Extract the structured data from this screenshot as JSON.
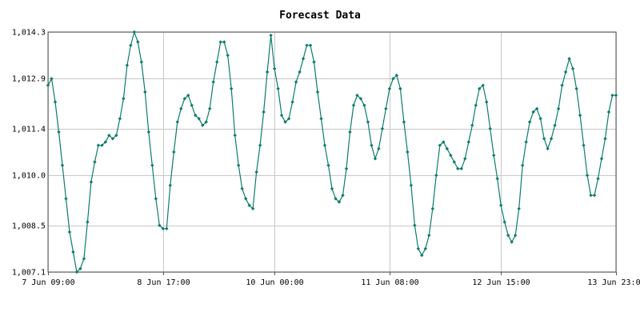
{
  "chart_data": {
    "type": "line",
    "title": "Forecast Data",
    "xlabel": "",
    "ylabel": "",
    "x_ticks": [
      {
        "t": 0,
        "label": "7 Jun 09:00"
      },
      {
        "t": 32,
        "label": "8 Jun 17:00"
      },
      {
        "t": 63,
        "label": "10 Jun 00:00"
      },
      {
        "t": 95,
        "label": "11 Jun 08:00"
      },
      {
        "t": 126,
        "label": "12 Jun 15:00"
      },
      {
        "t": 158,
        "label": "13 Jun 23:00"
      }
    ],
    "y_ticks": [
      {
        "v": 1007.1,
        "label": "1,007.1"
      },
      {
        "v": 1008.5,
        "label": "1,008.5"
      },
      {
        "v": 1010.0,
        "label": "1,010.0"
      },
      {
        "v": 1011.4,
        "label": "1,011.4"
      },
      {
        "v": 1012.9,
        "label": "1,012.9"
      },
      {
        "v": 1014.3,
        "label": "1,014.3"
      }
    ],
    "xlim": [
      0,
      158
    ],
    "ylim": [
      1007.1,
      1014.3
    ],
    "grid": true,
    "color": "#0e7c6b",
    "series": [
      {
        "x": [
          0,
          1,
          2,
          3,
          4,
          5,
          6,
          7,
          8,
          9,
          10,
          11,
          12,
          13,
          14,
          15,
          16,
          17,
          18,
          19,
          20,
          21,
          22,
          23,
          24,
          25,
          26,
          27,
          28,
          29,
          30,
          31,
          32,
          33,
          34,
          35,
          36,
          37,
          38,
          39,
          40,
          41,
          42,
          43,
          44,
          45,
          46,
          47,
          48,
          49,
          50,
          51,
          52,
          53,
          54,
          55,
          56,
          57,
          58,
          59,
          60,
          61,
          62,
          63,
          64,
          65,
          66,
          67,
          68,
          69,
          70,
          71,
          72,
          73,
          74,
          75,
          76,
          77,
          78,
          79,
          80,
          81,
          82,
          83,
          84,
          85,
          86,
          87,
          88,
          89,
          90,
          91,
          92,
          93,
          94,
          95,
          96,
          97,
          98,
          99,
          100,
          101,
          102,
          103,
          104,
          105,
          106,
          107,
          108,
          109,
          110,
          111,
          112,
          113,
          114,
          115,
          116,
          117,
          118,
          119,
          120,
          121,
          122,
          123,
          124,
          125,
          126,
          127,
          128,
          129,
          130,
          131,
          132,
          133,
          134,
          135,
          136,
          137,
          138,
          139,
          140,
          141,
          142,
          143,
          144,
          145,
          146,
          147,
          148,
          149,
          150,
          151,
          152,
          153,
          154,
          155,
          156,
          157,
          158
        ],
        "values": [
          1012.7,
          1012.9,
          1012.2,
          1011.3,
          1010.3,
          1009.3,
          1008.3,
          1007.7,
          1007.1,
          1007.2,
          1007.5,
          1008.6,
          1009.8,
          1010.4,
          1010.9,
          1010.9,
          1011.0,
          1011.2,
          1011.1,
          1011.2,
          1011.7,
          1012.3,
          1013.3,
          1013.9,
          1014.3,
          1014.0,
          1013.4,
          1012.5,
          1011.3,
          1010.3,
          1009.3,
          1008.5,
          1008.4,
          1008.4,
          1009.7,
          1010.7,
          1011.6,
          1012.0,
          1012.3,
          1012.4,
          1012.1,
          1011.8,
          1011.7,
          1011.5,
          1011.6,
          1012.0,
          1012.8,
          1013.4,
          1014.0,
          1014.0,
          1013.6,
          1012.6,
          1011.2,
          1010.3,
          1009.6,
          1009.3,
          1009.1,
          1009.0,
          1010.1,
          1010.9,
          1011.9,
          1013.1,
          1014.2,
          1013.2,
          1012.6,
          1011.8,
          1011.6,
          1011.7,
          1012.2,
          1012.8,
          1013.1,
          1013.5,
          1013.9,
          1013.9,
          1013.4,
          1012.5,
          1011.7,
          1010.9,
          1010.3,
          1009.6,
          1009.3,
          1009.2,
          1009.4,
          1010.2,
          1011.3,
          1012.1,
          1012.4,
          1012.3,
          1012.1,
          1011.6,
          1010.9,
          1010.5,
          1010.8,
          1011.4,
          1012.0,
          1012.6,
          1012.9,
          1013.0,
          1012.6,
          1011.6,
          1010.7,
          1009.7,
          1008.5,
          1007.8,
          1007.6,
          1007.8,
          1008.2,
          1009.0,
          1010.0,
          1010.9,
          1011.0,
          1010.8,
          1010.6,
          1010.4,
          1010.2,
          1010.2,
          1010.5,
          1011.0,
          1011.5,
          1012.1,
          1012.6,
          1012.7,
          1012.2,
          1011.4,
          1010.6,
          1009.9,
          1009.1,
          1008.6,
          1008.2,
          1008.0,
          1008.2,
          1009.0,
          1010.3,
          1011.0,
          1011.6,
          1011.9,
          1012.0,
          1011.7,
          1011.1,
          1010.8,
          1011.1,
          1011.5,
          1012.0,
          1012.7,
          1013.1,
          1013.5,
          1013.2,
          1012.6,
          1011.8,
          1010.9,
          1010.0,
          1009.4,
          1009.4,
          1009.9,
          1010.5,
          1011.1,
          1011.9,
          1012.4,
          1012.4
        ]
      }
    ]
  }
}
